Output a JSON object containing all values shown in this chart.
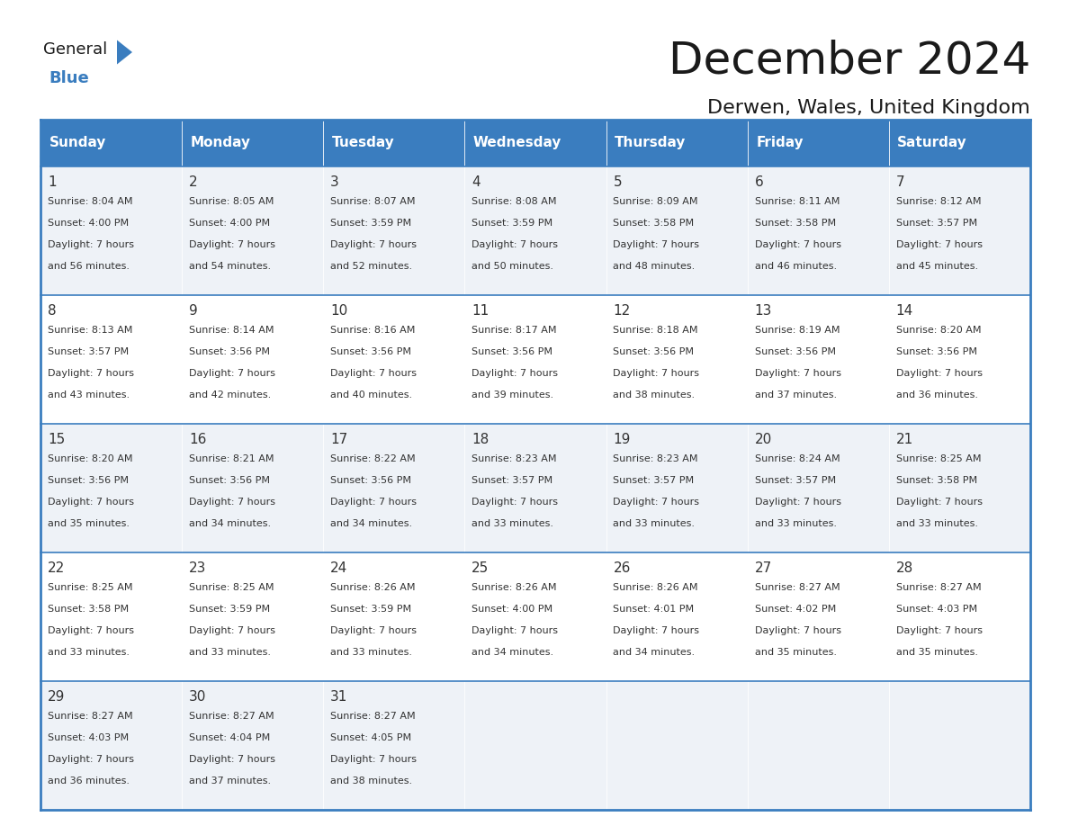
{
  "title": "December 2024",
  "subtitle": "Derwen, Wales, United Kingdom",
  "header_color": "#3a7dbf",
  "header_text_color": "#ffffff",
  "cell_bg_even": "#eef2f7",
  "cell_bg_odd": "#ffffff",
  "border_color": "#3a7dbf",
  "text_color": "#333333",
  "days_of_week": [
    "Sunday",
    "Monday",
    "Tuesday",
    "Wednesday",
    "Thursday",
    "Friday",
    "Saturday"
  ],
  "calendar_data": [
    [
      {
        "day": "1",
        "sunrise": "8:04 AM",
        "sunset": "4:00 PM",
        "daylight_min": "56"
      },
      {
        "day": "2",
        "sunrise": "8:05 AM",
        "sunset": "4:00 PM",
        "daylight_min": "54"
      },
      {
        "day": "3",
        "sunrise": "8:07 AM",
        "sunset": "3:59 PM",
        "daylight_min": "52"
      },
      {
        "day": "4",
        "sunrise": "8:08 AM",
        "sunset": "3:59 PM",
        "daylight_min": "50"
      },
      {
        "day": "5",
        "sunrise": "8:09 AM",
        "sunset": "3:58 PM",
        "daylight_min": "48"
      },
      {
        "day": "6",
        "sunrise": "8:11 AM",
        "sunset": "3:58 PM",
        "daylight_min": "46"
      },
      {
        "day": "7",
        "sunrise": "8:12 AM",
        "sunset": "3:57 PM",
        "daylight_min": "45"
      }
    ],
    [
      {
        "day": "8",
        "sunrise": "8:13 AM",
        "sunset": "3:57 PM",
        "daylight_min": "43"
      },
      {
        "day": "9",
        "sunrise": "8:14 AM",
        "sunset": "3:56 PM",
        "daylight_min": "42"
      },
      {
        "day": "10",
        "sunrise": "8:16 AM",
        "sunset": "3:56 PM",
        "daylight_min": "40"
      },
      {
        "day": "11",
        "sunrise": "8:17 AM",
        "sunset": "3:56 PM",
        "daylight_min": "39"
      },
      {
        "day": "12",
        "sunrise": "8:18 AM",
        "sunset": "3:56 PM",
        "daylight_min": "38"
      },
      {
        "day": "13",
        "sunrise": "8:19 AM",
        "sunset": "3:56 PM",
        "daylight_min": "37"
      },
      {
        "day": "14",
        "sunrise": "8:20 AM",
        "sunset": "3:56 PM",
        "daylight_min": "36"
      }
    ],
    [
      {
        "day": "15",
        "sunrise": "8:20 AM",
        "sunset": "3:56 PM",
        "daylight_min": "35"
      },
      {
        "day": "16",
        "sunrise": "8:21 AM",
        "sunset": "3:56 PM",
        "daylight_min": "34"
      },
      {
        "day": "17",
        "sunrise": "8:22 AM",
        "sunset": "3:56 PM",
        "daylight_min": "34"
      },
      {
        "day": "18",
        "sunrise": "8:23 AM",
        "sunset": "3:57 PM",
        "daylight_min": "33"
      },
      {
        "day": "19",
        "sunrise": "8:23 AM",
        "sunset": "3:57 PM",
        "daylight_min": "33"
      },
      {
        "day": "20",
        "sunrise": "8:24 AM",
        "sunset": "3:57 PM",
        "daylight_min": "33"
      },
      {
        "day": "21",
        "sunrise": "8:25 AM",
        "sunset": "3:58 PM",
        "daylight_min": "33"
      }
    ],
    [
      {
        "day": "22",
        "sunrise": "8:25 AM",
        "sunset": "3:58 PM",
        "daylight_min": "33"
      },
      {
        "day": "23",
        "sunrise": "8:25 AM",
        "sunset": "3:59 PM",
        "daylight_min": "33"
      },
      {
        "day": "24",
        "sunrise": "8:26 AM",
        "sunset": "3:59 PM",
        "daylight_min": "33"
      },
      {
        "day": "25",
        "sunrise": "8:26 AM",
        "sunset": "4:00 PM",
        "daylight_min": "34"
      },
      {
        "day": "26",
        "sunrise": "8:26 AM",
        "sunset": "4:01 PM",
        "daylight_min": "34"
      },
      {
        "day": "27",
        "sunrise": "8:27 AM",
        "sunset": "4:02 PM",
        "daylight_min": "35"
      },
      {
        "day": "28",
        "sunrise": "8:27 AM",
        "sunset": "4:03 PM",
        "daylight_min": "35"
      }
    ],
    [
      {
        "day": "29",
        "sunrise": "8:27 AM",
        "sunset": "4:03 PM",
        "daylight_min": "36"
      },
      {
        "day": "30",
        "sunrise": "8:27 AM",
        "sunset": "4:04 PM",
        "daylight_min": "37"
      },
      {
        "day": "31",
        "sunrise": "8:27 AM",
        "sunset": "4:05 PM",
        "daylight_min": "38"
      },
      null,
      null,
      null,
      null
    ]
  ],
  "logo_general_color": "#1a1a1a",
  "logo_blue_color": "#3a7dbf",
  "logo_triangle_color": "#3a7dbf",
  "title_fontsize": 36,
  "subtitle_fontsize": 16,
  "header_fontsize": 11,
  "day_num_fontsize": 11,
  "cell_text_fontsize": 8
}
